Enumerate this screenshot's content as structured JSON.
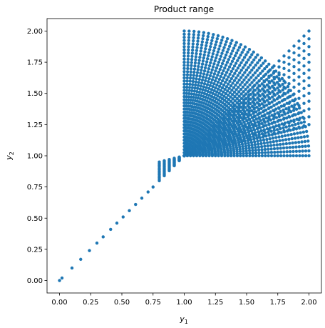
{
  "chart_data": {
    "type": "scatter",
    "title": "Product range",
    "xlabel": {
      "base": "y",
      "subscript": "1"
    },
    "ylabel": {
      "base": "y",
      "subscript": "2"
    },
    "xlim": [
      -0.1,
      2.1
    ],
    "ylim": [
      -0.1,
      2.1
    ],
    "xticks": [
      "0.00",
      "0.25",
      "0.50",
      "0.75",
      "1.00",
      "1.25",
      "1.50",
      "1.75",
      "2.00"
    ],
    "yticks": [
      "0.00",
      "0.25",
      "0.50",
      "0.75",
      "1.00",
      "1.25",
      "1.50",
      "1.75",
      "2.00"
    ],
    "grid": false,
    "marker_color": "#1f77b4",
    "description_of_points": {
      "diagonal_segment": "points along y2 = y1 from (0,0) to about (0.75,0.75)",
      "region": "dense fan of points bounded by lines y2 = y1 (0.75..1.0), y2 = 1 + 0.5*(y1-1)... and the box [1,2]x[1,2] plus region between y1 from ~0.8 to 2"
    },
    "series": [
      {
        "name": "",
        "generator": "pairwise-sums"
      }
    ]
  }
}
